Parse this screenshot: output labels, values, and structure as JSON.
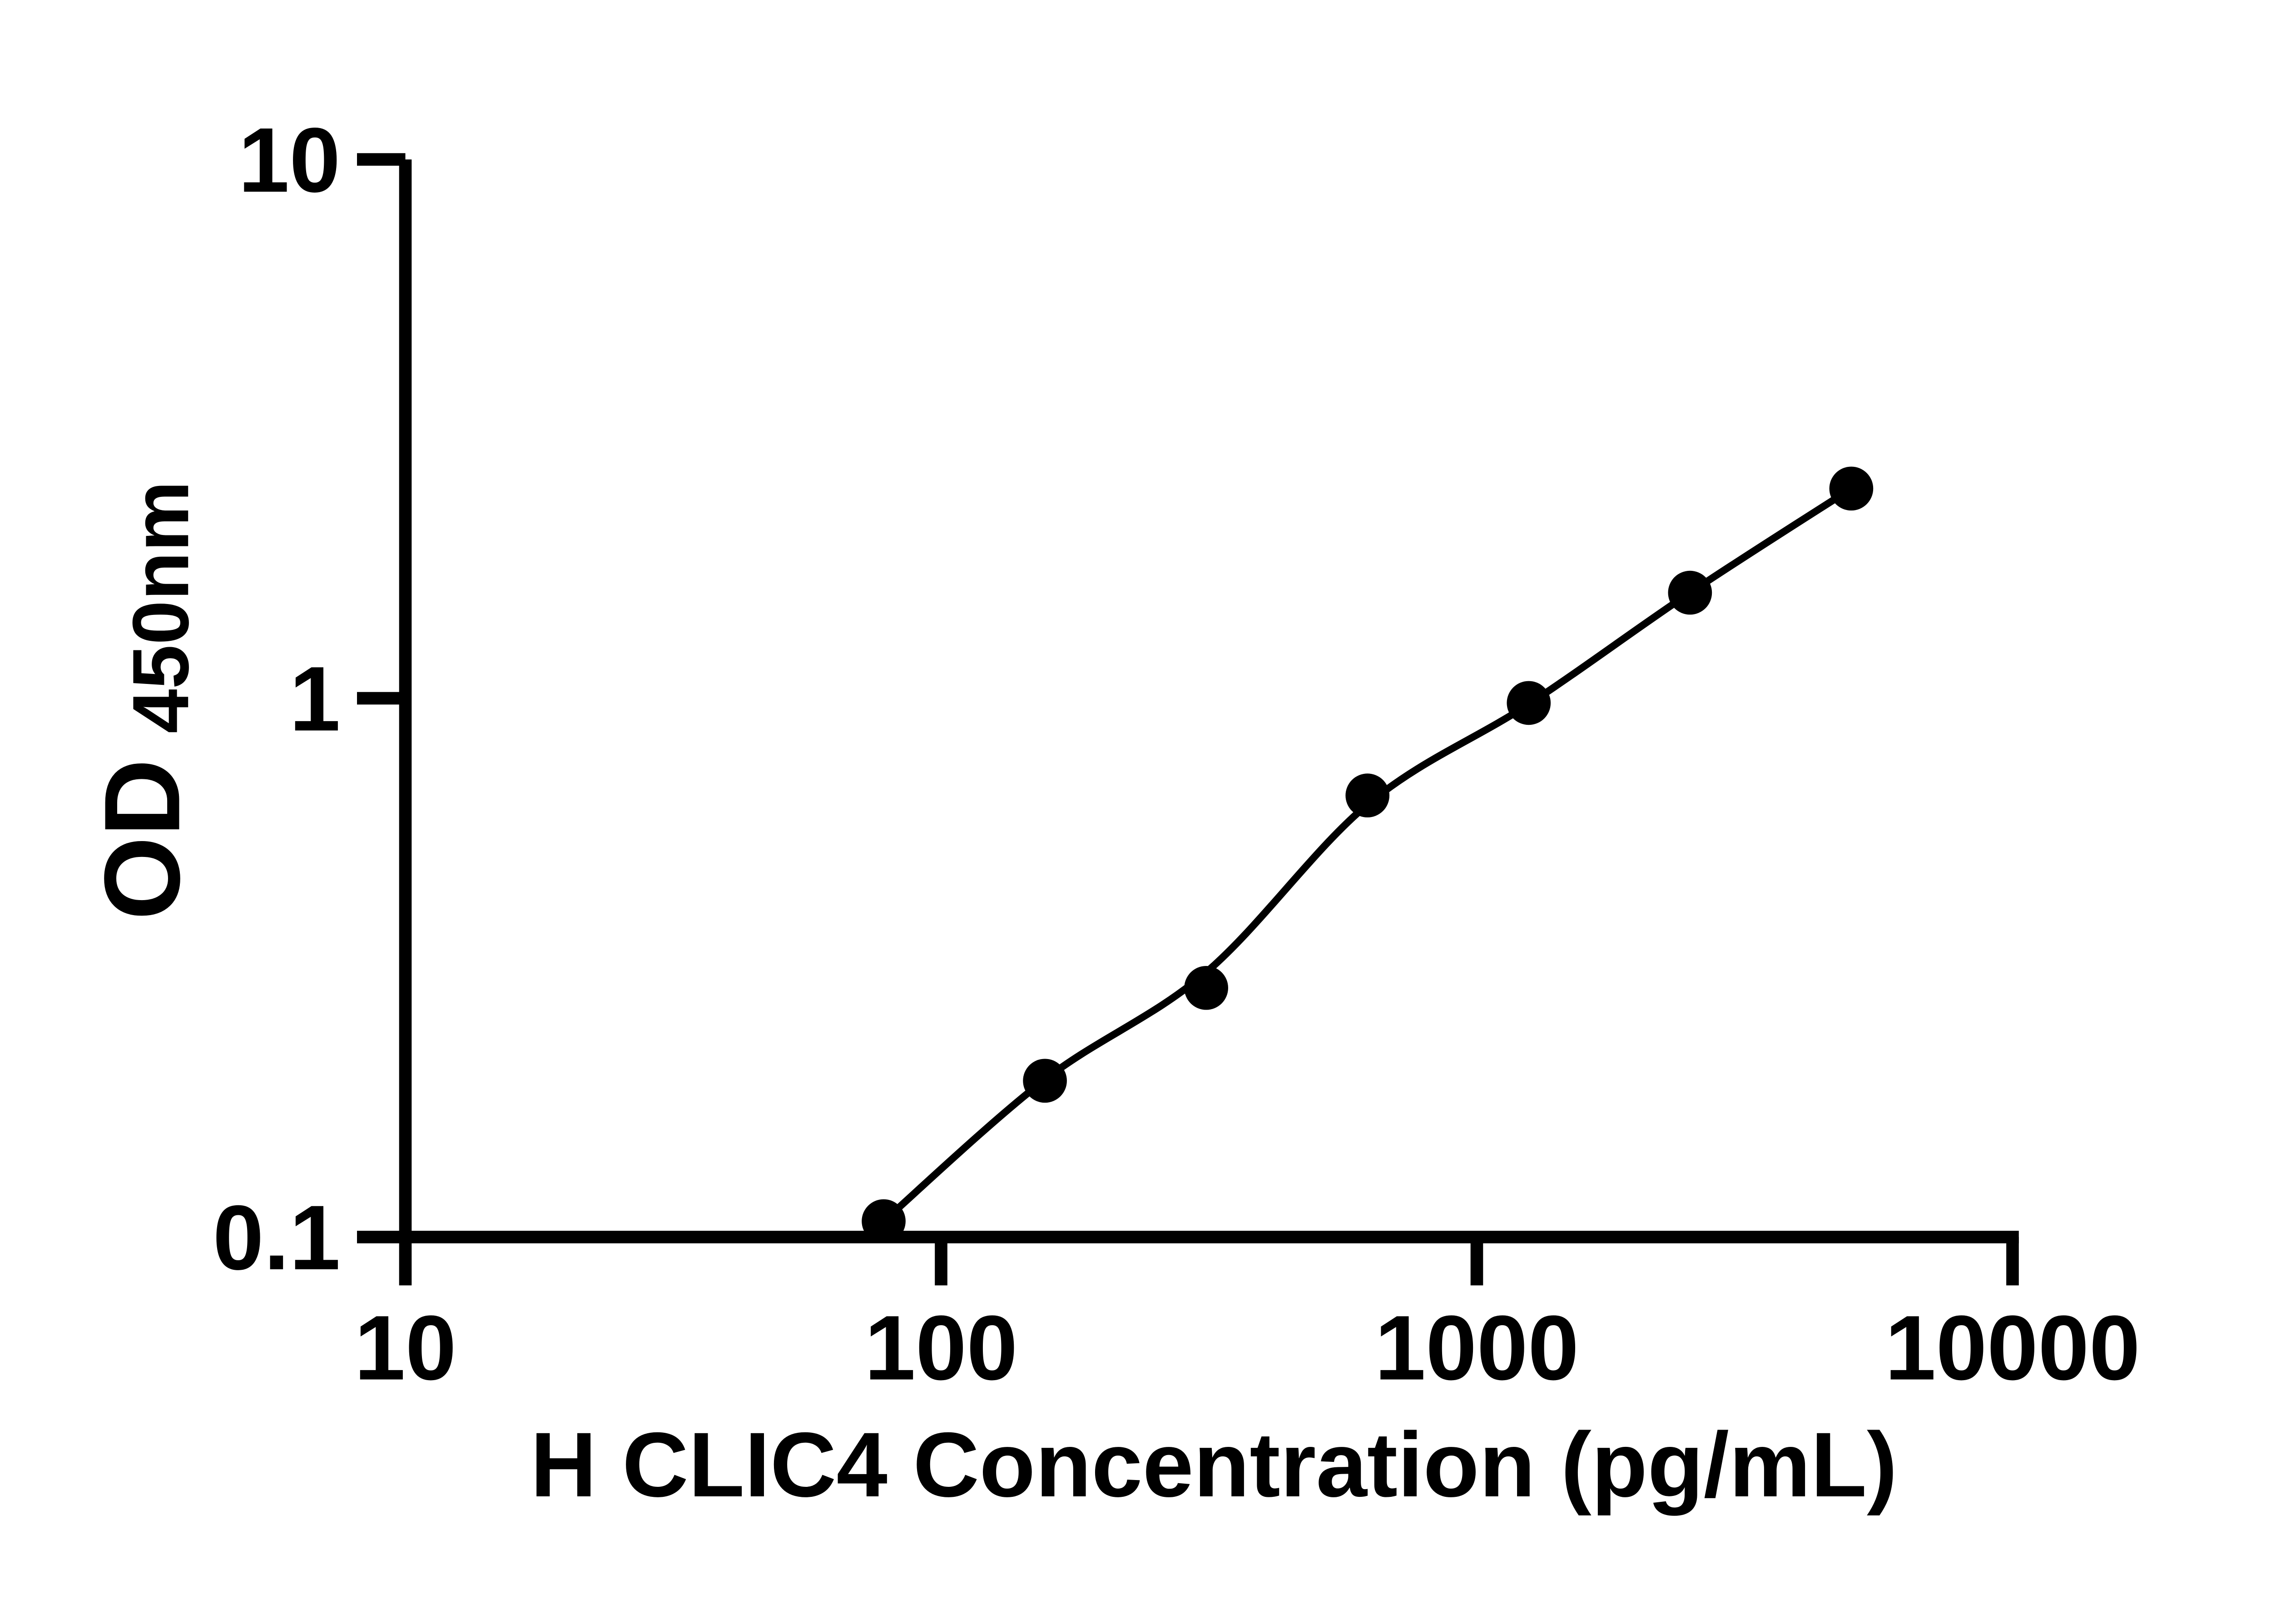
{
  "chart_data": {
    "type": "scatter",
    "title": "",
    "xlabel": "H CLIC4 Concentration (pg/mL)",
    "ylabel_main": "OD",
    "ylabel_sub": "450nm",
    "x_scale": "log10",
    "y_scale": "log10",
    "xlim": [
      10,
      10000
    ],
    "ylim": [
      0.1,
      10
    ],
    "x_ticks": [
      10,
      100,
      1000,
      10000
    ],
    "x_tick_labels": [
      "10",
      "100",
      "1000",
      "10000"
    ],
    "y_ticks": [
      10,
      1,
      0.1
    ],
    "y_tick_labels": [
      "10",
      "1",
      "0.1"
    ],
    "grid": false,
    "legend": false,
    "series": [
      {
        "marker": "circle",
        "color": "#000000",
        "x": [
          78.125,
          156.25,
          312.5,
          625,
          1250,
          2500,
          5000
        ],
        "y": [
          0.107,
          0.195,
          0.29,
          0.66,
          0.98,
          1.57,
          2.45
        ]
      }
    ],
    "fit_curve": {
      "x": [
        78.125,
        156.25,
        312.5,
        625,
        1250,
        2500,
        5000
      ],
      "y": [
        0.107,
        0.196,
        0.31,
        0.635,
        0.975,
        1.57,
        2.45
      ]
    },
    "colors": {
      "axis": "#000000",
      "marker": "#000000",
      "line": "#000000",
      "background": "#ffffff"
    }
  }
}
